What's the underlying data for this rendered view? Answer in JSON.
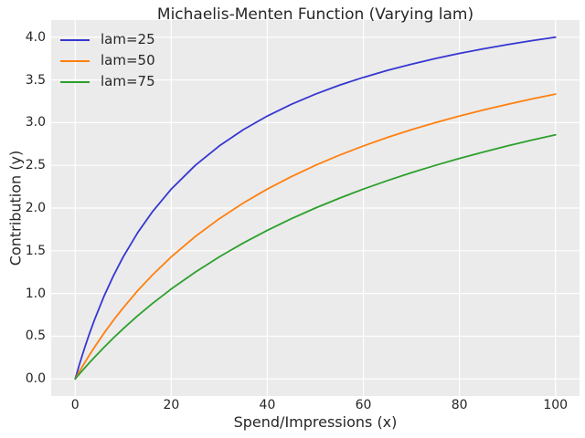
{
  "figure": {
    "background": "#ffffff",
    "plot_background": "#ebebeb",
    "grid_color": "#ffffff",
    "text_color": "#262626"
  },
  "chart_data": {
    "type": "line",
    "title": "Michaelis-Menten Function (Varying lam)",
    "xlabel": "Spend/Impressions (x)",
    "ylabel": "Contribution (y)",
    "xlim": [
      -5,
      105
    ],
    "ylim": [
      -0.2,
      4.2
    ],
    "grid": true,
    "legend_position": "upper-left",
    "xticks": [
      0,
      20,
      40,
      60,
      80,
      100
    ],
    "xtick_labels": [
      "0",
      "20",
      "40",
      "60",
      "80",
      "100"
    ],
    "yticks": [
      0.0,
      0.5,
      1.0,
      1.5,
      2.0,
      2.5,
      3.0,
      3.5,
      4.0
    ],
    "ytick_labels": [
      "0.0",
      "0.5",
      "1.0",
      "1.5",
      "2.0",
      "2.5",
      "3.0",
      "3.5",
      "4.0"
    ],
    "x": [
      0,
      1,
      2,
      3,
      4,
      6,
      8,
      10,
      13,
      16,
      20,
      25,
      30,
      35,
      40,
      45,
      50,
      55,
      60,
      65,
      70,
      75,
      80,
      85,
      90,
      95,
      100
    ],
    "series": [
      {
        "name": "lam=25",
        "color": "#3636d2",
        "values": [
          0,
          0.192,
          0.37,
          0.536,
          0.69,
          0.968,
          1.212,
          1.429,
          1.711,
          1.951,
          2.222,
          2.5,
          2.727,
          2.917,
          3.077,
          3.214,
          3.333,
          3.438,
          3.529,
          3.611,
          3.684,
          3.75,
          3.81,
          3.864,
          3.913,
          3.958,
          4.0
        ]
      },
      {
        "name": "lam=50",
        "color": "#ff7f0e",
        "values": [
          0,
          0.098,
          0.192,
          0.283,
          0.37,
          0.536,
          0.69,
          0.833,
          1.032,
          1.212,
          1.429,
          1.667,
          1.875,
          2.059,
          2.222,
          2.368,
          2.5,
          2.619,
          2.727,
          2.826,
          2.917,
          3.0,
          3.077,
          3.148,
          3.214,
          3.276,
          3.333
        ]
      },
      {
        "name": "lam=75",
        "color": "#2ca02c",
        "values": [
          0,
          0.066,
          0.13,
          0.192,
          0.253,
          0.37,
          0.482,
          0.588,
          0.739,
          0.879,
          1.053,
          1.25,
          1.429,
          1.591,
          1.739,
          1.875,
          2.0,
          2.115,
          2.222,
          2.321,
          2.414,
          2.5,
          2.581,
          2.656,
          2.727,
          2.794,
          2.857
        ]
      }
    ]
  }
}
